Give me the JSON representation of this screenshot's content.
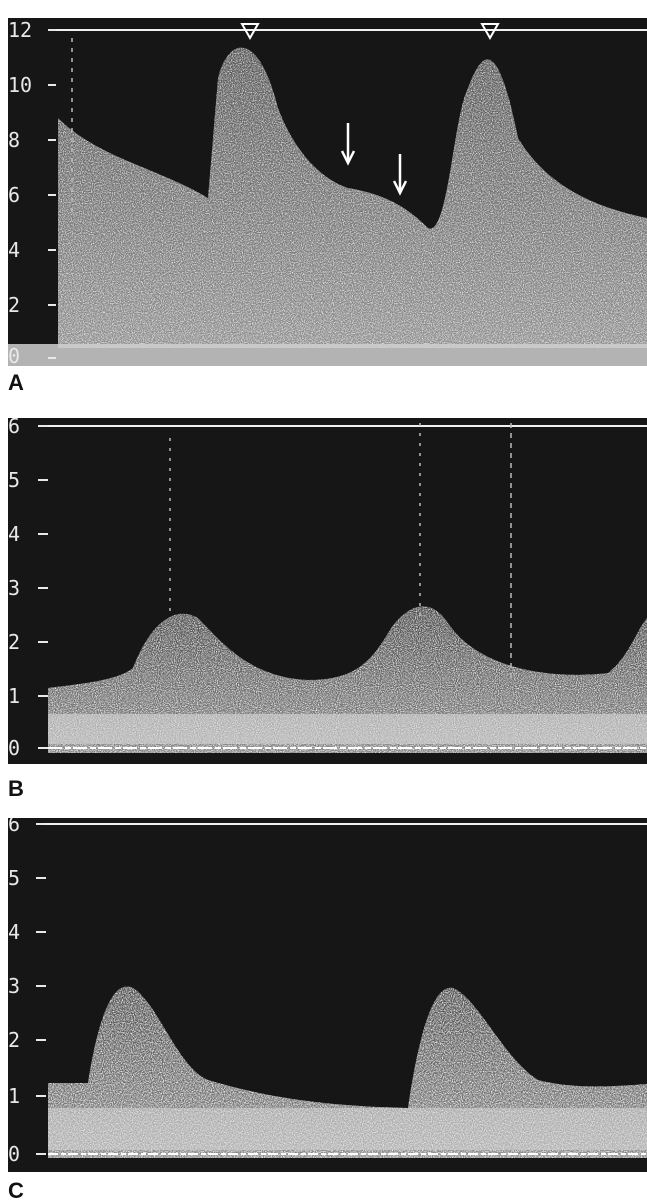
{
  "panels": [
    {
      "label": "A",
      "y_ticks": [
        "12",
        "10",
        "8",
        "6",
        "4",
        "2",
        "0"
      ],
      "y_max": 12,
      "markers": [
        "arrowhead",
        "arrowhead"
      ],
      "arrows": [
        "arrow",
        "arrow"
      ]
    },
    {
      "label": "B",
      "y_ticks": [
        "6",
        "5",
        "4",
        "3",
        "2",
        "1",
        "0"
      ],
      "y_max": 6
    },
    {
      "label": "C",
      "y_ticks": [
        "6",
        "5",
        "4",
        "3",
        "2",
        "1",
        "0"
      ],
      "y_max": 6
    }
  ],
  "colors": {
    "background": "#161616",
    "signal": "#e6e6e6",
    "baseline": "#ffffff"
  }
}
